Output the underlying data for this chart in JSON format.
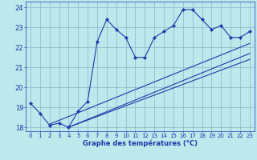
{
  "xlabel": "Graphe des températures (°C)",
  "xlim": [
    -0.5,
    23.5
  ],
  "ylim": [
    17.8,
    24.3
  ],
  "yticks": [
    18,
    19,
    20,
    21,
    22,
    23,
    24
  ],
  "xticks": [
    0,
    1,
    2,
    3,
    4,
    5,
    6,
    7,
    8,
    9,
    10,
    11,
    12,
    13,
    14,
    15,
    16,
    17,
    18,
    19,
    20,
    21,
    22,
    23
  ],
  "background_color": "#bde8ec",
  "grid_color": "#8eb4cc",
  "line_color": "#1a3aaa",
  "main_data_x": [
    0,
    1,
    2,
    3,
    4,
    5,
    6,
    7,
    8,
    9,
    10,
    11,
    12,
    13,
    14,
    15,
    16,
    17,
    18,
    19,
    20,
    21,
    22,
    23
  ],
  "main_data_y": [
    19.2,
    18.7,
    18.1,
    18.2,
    18.0,
    18.8,
    19.3,
    22.3,
    23.4,
    22.9,
    22.5,
    21.5,
    21.5,
    22.5,
    22.8,
    23.1,
    23.9,
    23.9,
    23.4,
    22.9,
    23.1,
    22.5,
    22.5,
    22.8
  ],
  "trend1_x": [
    2,
    23
  ],
  "trend1_y": [
    18.15,
    22.2
  ],
  "trend2_x": [
    4,
    23
  ],
  "trend2_y": [
    18.0,
    21.7
  ],
  "trend3_x": [
    4,
    23
  ],
  "trend3_y": [
    18.0,
    21.4
  ]
}
